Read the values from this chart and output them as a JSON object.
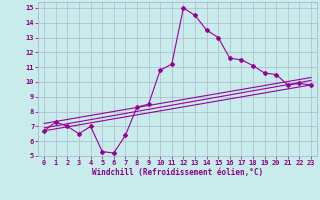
{
  "xlabel": "Windchill (Refroidissement éolien,°C)",
  "bg_color": "#c8ecec",
  "line_color": "#990099",
  "grid_color": "#b0b8cc",
  "xlim": [
    -0.5,
    23.5
  ],
  "ylim": [
    5,
    15.4
  ],
  "xticks": [
    0,
    1,
    2,
    3,
    4,
    5,
    6,
    7,
    8,
    9,
    10,
    11,
    12,
    13,
    14,
    15,
    16,
    17,
    18,
    19,
    20,
    21,
    22,
    23
  ],
  "yticks": [
    5,
    6,
    7,
    8,
    9,
    10,
    11,
    12,
    13,
    14,
    15
  ],
  "curve1_x": [
    0,
    1,
    2,
    3,
    4,
    5,
    6,
    7,
    8,
    9,
    10,
    11,
    12,
    13,
    14,
    15,
    16,
    17,
    18,
    19,
    20,
    21,
    22,
    23
  ],
  "curve1_y": [
    6.7,
    7.3,
    7.0,
    6.5,
    7.0,
    5.3,
    5.2,
    6.4,
    8.3,
    8.5,
    10.8,
    11.2,
    15.0,
    14.5,
    13.5,
    13.0,
    11.6,
    11.5,
    11.1,
    10.6,
    10.5,
    9.8,
    9.9,
    9.8
  ],
  "trend1_x": [
    0,
    23
  ],
  "trend1_y": [
    6.7,
    9.8
  ],
  "trend2_x": [
    0,
    23
  ],
  "trend2_y": [
    6.9,
    10.1
  ],
  "trend3_x": [
    0,
    23
  ],
  "trend3_y": [
    7.2,
    10.3
  ],
  "marker": "D",
  "marker_size": 2.0,
  "linewidth": 0.8
}
